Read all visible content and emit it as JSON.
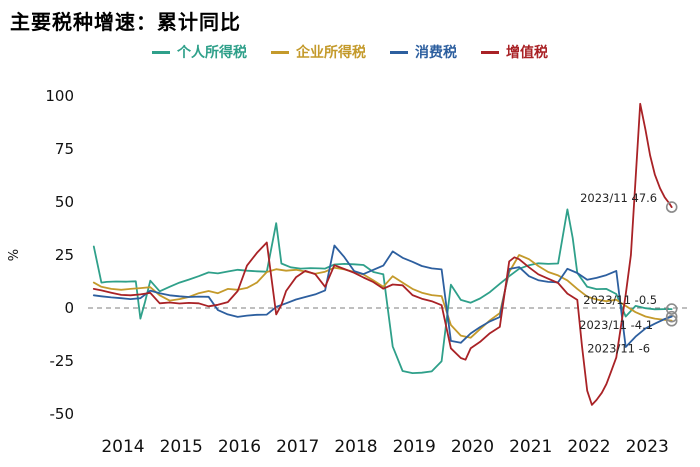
{
  "page": {
    "background": "#ffffff"
  },
  "chart_data": {
    "type": "line",
    "title": "主要税种增速：累计同比",
    "ylabel": "%",
    "xlim": [
      2013.85,
      2024.15
    ],
    "ylim": [
      -50,
      100
    ],
    "yticks": [
      100,
      75,
      50,
      25,
      0,
      -25,
      -50
    ],
    "xticks": [
      2014,
      2015,
      2016,
      2017,
      2018,
      2019,
      2020,
      2021,
      2022,
      2023
    ],
    "zero_line": {
      "dashed": true,
      "color": "#7f7f7f"
    },
    "legend_position": "top-center",
    "end_marker_color": "#8c8c8c",
    "series": [
      {
        "key": "personal-income-tax",
        "name": "个人所得税",
        "color": "#2fa08a",
        "points": [
          [
            2013.95,
            29
          ],
          [
            2014.08,
            12
          ],
          [
            2014.17,
            12.3
          ],
          [
            2014.33,
            12.5
          ],
          [
            2014.5,
            12.4
          ],
          [
            2014.67,
            12.6
          ],
          [
            2014.75,
            -5
          ],
          [
            2014.83,
            3
          ],
          [
            2014.92,
            12.9
          ],
          [
            2015.08,
            7.9
          ],
          [
            2015.25,
            10
          ],
          [
            2015.42,
            12
          ],
          [
            2015.58,
            13.4
          ],
          [
            2015.75,
            15
          ],
          [
            2015.92,
            16.8
          ],
          [
            2016.08,
            16.3
          ],
          [
            2016.25,
            17.2
          ],
          [
            2016.42,
            18
          ],
          [
            2016.58,
            17.6
          ],
          [
            2016.75,
            17.3
          ],
          [
            2016.92,
            17.1
          ],
          [
            2017.08,
            40
          ],
          [
            2017.17,
            21
          ],
          [
            2017.33,
            19.2
          ],
          [
            2017.5,
            18.6
          ],
          [
            2017.67,
            18.8
          ],
          [
            2017.83,
            18.7
          ],
          [
            2017.92,
            18.6
          ],
          [
            2018.08,
            20.5
          ],
          [
            2018.25,
            20.8
          ],
          [
            2018.42,
            20.6
          ],
          [
            2018.58,
            20.3
          ],
          [
            2018.75,
            17
          ],
          [
            2018.92,
            15.9
          ],
          [
            2019.08,
            -18.1
          ],
          [
            2019.25,
            -29.7
          ],
          [
            2019.42,
            -30.7
          ],
          [
            2019.58,
            -30.5
          ],
          [
            2019.75,
            -29.9
          ],
          [
            2019.92,
            -25.1
          ],
          [
            2020.08,
            11
          ],
          [
            2020.25,
            3.8
          ],
          [
            2020.42,
            2.5
          ],
          [
            2020.58,
            4.5
          ],
          [
            2020.75,
            7.5
          ],
          [
            2020.92,
            11.4
          ],
          [
            2021.08,
            15
          ],
          [
            2021.25,
            18.5
          ],
          [
            2021.42,
            20.2
          ],
          [
            2021.58,
            21.1
          ],
          [
            2021.75,
            20.8
          ],
          [
            2021.92,
            21
          ],
          [
            2022.08,
            46.5
          ],
          [
            2022.17,
            33
          ],
          [
            2022.25,
            16.5
          ],
          [
            2022.42,
            10
          ],
          [
            2022.58,
            8.9
          ],
          [
            2022.75,
            9
          ],
          [
            2022.92,
            6.6
          ],
          [
            2023.08,
            -4
          ],
          [
            2023.25,
            1
          ],
          [
            2023.42,
            -0.1
          ],
          [
            2023.58,
            -0.6
          ],
          [
            2023.75,
            -0.5
          ],
          [
            2023.87,
            -0.5
          ]
        ]
      },
      {
        "key": "corporate-income-tax",
        "name": "企业所得税",
        "color": "#c49a2b",
        "points": [
          [
            2013.95,
            12
          ],
          [
            2014.08,
            10
          ],
          [
            2014.25,
            9
          ],
          [
            2014.42,
            8.6
          ],
          [
            2014.58,
            9
          ],
          [
            2014.75,
            9.4
          ],
          [
            2014.92,
            9.8
          ],
          [
            2015.08,
            6
          ],
          [
            2015.25,
            3.5
          ],
          [
            2015.42,
            4.2
          ],
          [
            2015.58,
            5.2
          ],
          [
            2015.75,
            7
          ],
          [
            2015.92,
            8
          ],
          [
            2016.08,
            7
          ],
          [
            2016.25,
            9
          ],
          [
            2016.42,
            8.6
          ],
          [
            2016.58,
            9.5
          ],
          [
            2016.75,
            12
          ],
          [
            2016.92,
            17
          ],
          [
            2017.08,
            18.3
          ],
          [
            2017.25,
            17.6
          ],
          [
            2017.42,
            18
          ],
          [
            2017.58,
            17.2
          ],
          [
            2017.75,
            16.2
          ],
          [
            2017.92,
            17.1
          ],
          [
            2018.08,
            19
          ],
          [
            2018.25,
            18.2
          ],
          [
            2018.42,
            17
          ],
          [
            2018.58,
            15.8
          ],
          [
            2018.75,
            13
          ],
          [
            2018.92,
            10
          ],
          [
            2019.08,
            15
          ],
          [
            2019.25,
            12
          ],
          [
            2019.42,
            9
          ],
          [
            2019.58,
            7.2
          ],
          [
            2019.75,
            6.1
          ],
          [
            2019.92,
            5.6
          ],
          [
            2020.08,
            -8
          ],
          [
            2020.25,
            -13
          ],
          [
            2020.42,
            -14
          ],
          [
            2020.58,
            -10
          ],
          [
            2020.75,
            -5.8
          ],
          [
            2020.92,
            -2.4
          ],
          [
            2021.08,
            17
          ],
          [
            2021.25,
            25
          ],
          [
            2021.42,
            23
          ],
          [
            2021.58,
            19.8
          ],
          [
            2021.75,
            17
          ],
          [
            2021.92,
            15.4
          ],
          [
            2022.08,
            13
          ],
          [
            2022.25,
            9
          ],
          [
            2022.42,
            5.4
          ],
          [
            2022.58,
            4
          ],
          [
            2022.75,
            3.2
          ],
          [
            2022.92,
            3.9
          ],
          [
            2023.08,
            1
          ],
          [
            2023.25,
            -2
          ],
          [
            2023.42,
            -4
          ],
          [
            2023.58,
            -5
          ],
          [
            2023.75,
            -5.6
          ],
          [
            2023.87,
            -6
          ]
        ]
      },
      {
        "key": "consumption-tax",
        "name": "消费税",
        "color": "#2d5f9f",
        "points": [
          [
            2013.95,
            6
          ],
          [
            2014.08,
            5.5
          ],
          [
            2014.25,
            5
          ],
          [
            2014.42,
            4.6
          ],
          [
            2014.58,
            4.2
          ],
          [
            2014.75,
            4.6
          ],
          [
            2014.92,
            8.2
          ],
          [
            2015.08,
            7
          ],
          [
            2015.25,
            6
          ],
          [
            2015.42,
            5.5
          ],
          [
            2015.58,
            5.2
          ],
          [
            2015.75,
            5.4
          ],
          [
            2015.92,
            5.3
          ],
          [
            2016.08,
            -1
          ],
          [
            2016.25,
            -3
          ],
          [
            2016.42,
            -4.2
          ],
          [
            2016.58,
            -3.6
          ],
          [
            2016.75,
            -3.2
          ],
          [
            2016.92,
            -3.1
          ],
          [
            2017.08,
            0.5
          ],
          [
            2017.25,
            2.2
          ],
          [
            2017.42,
            4
          ],
          [
            2017.58,
            5.2
          ],
          [
            2017.75,
            6.4
          ],
          [
            2017.92,
            8.3
          ],
          [
            2018.08,
            29.5
          ],
          [
            2018.25,
            24
          ],
          [
            2018.42,
            17.4
          ],
          [
            2018.58,
            16
          ],
          [
            2018.75,
            18
          ],
          [
            2018.92,
            20
          ],
          [
            2019.08,
            26.7
          ],
          [
            2019.25,
            23.7
          ],
          [
            2019.42,
            21.8
          ],
          [
            2019.58,
            19.8
          ],
          [
            2019.75,
            18.7
          ],
          [
            2019.92,
            18.2
          ],
          [
            2020.08,
            -15.5
          ],
          [
            2020.25,
            -16.4
          ],
          [
            2020.42,
            -12
          ],
          [
            2020.58,
            -9
          ],
          [
            2020.75,
            -6.3
          ],
          [
            2020.92,
            -4.3
          ],
          [
            2021.08,
            18.4
          ],
          [
            2021.25,
            19.3
          ],
          [
            2021.42,
            15
          ],
          [
            2021.58,
            13.1
          ],
          [
            2021.75,
            12.3
          ],
          [
            2021.92,
            12.1
          ],
          [
            2022.08,
            18.5
          ],
          [
            2022.25,
            16.5
          ],
          [
            2022.42,
            13.3
          ],
          [
            2022.58,
            14.2
          ],
          [
            2022.75,
            15.5
          ],
          [
            2022.92,
            17.5
          ],
          [
            2023.08,
            -18.4
          ],
          [
            2023.25,
            -13.5
          ],
          [
            2023.42,
            -9.6
          ],
          [
            2023.58,
            -7.4
          ],
          [
            2023.75,
            -5.2
          ],
          [
            2023.87,
            -4.1
          ]
        ]
      },
      {
        "key": "vat",
        "name": "增值税",
        "color": "#a92226",
        "points": [
          [
            2013.95,
            9
          ],
          [
            2014.08,
            8.3
          ],
          [
            2014.25,
            7.2
          ],
          [
            2014.42,
            6.2
          ],
          [
            2014.58,
            6
          ],
          [
            2014.75,
            6.4
          ],
          [
            2014.92,
            7.1
          ],
          [
            2015.08,
            2.2
          ],
          [
            2015.25,
            2.6
          ],
          [
            2015.42,
            2.1
          ],
          [
            2015.58,
            2.4
          ],
          [
            2015.75,
            2.2
          ],
          [
            2015.92,
            0.8
          ],
          [
            2016.08,
            1.5
          ],
          [
            2016.25,
            2.8
          ],
          [
            2016.42,
            8
          ],
          [
            2016.58,
            20
          ],
          [
            2016.75,
            26
          ],
          [
            2016.92,
            30.9
          ],
          [
            2017.08,
            -3
          ],
          [
            2017.17,
            1.5
          ],
          [
            2017.25,
            8
          ],
          [
            2017.42,
            14.5
          ],
          [
            2017.58,
            17.5
          ],
          [
            2017.75,
            16
          ],
          [
            2017.92,
            10
          ],
          [
            2018.08,
            20.2
          ],
          [
            2018.25,
            18.4
          ],
          [
            2018.42,
            16.6
          ],
          [
            2018.58,
            14.4
          ],
          [
            2018.75,
            12.2
          ],
          [
            2018.92,
            9.1
          ],
          [
            2019.08,
            11.1
          ],
          [
            2019.25,
            10.7
          ],
          [
            2019.42,
            6.1
          ],
          [
            2019.58,
            4.4
          ],
          [
            2019.75,
            3.2
          ],
          [
            2019.92,
            1.3
          ],
          [
            2020.08,
            -19
          ],
          [
            2020.25,
            -23.6
          ],
          [
            2020.33,
            -24.4
          ],
          [
            2020.42,
            -19
          ],
          [
            2020.58,
            -16
          ],
          [
            2020.75,
            -11.9
          ],
          [
            2020.92,
            -8.9
          ],
          [
            2021.08,
            22
          ],
          [
            2021.17,
            23.9
          ],
          [
            2021.25,
            23
          ],
          [
            2021.42,
            19.2
          ],
          [
            2021.58,
            15.9
          ],
          [
            2021.75,
            13.8
          ],
          [
            2021.92,
            11.8
          ],
          [
            2022.08,
            6.8
          ],
          [
            2022.25,
            3.8
          ],
          [
            2022.33,
            -18
          ],
          [
            2022.42,
            -39
          ],
          [
            2022.5,
            -45.7
          ],
          [
            2022.58,
            -43.4
          ],
          [
            2022.67,
            -40
          ],
          [
            2022.75,
            -35.9
          ],
          [
            2022.83,
            -30
          ],
          [
            2022.92,
            -23.3
          ],
          [
            2023.08,
            6.3
          ],
          [
            2023.17,
            25
          ],
          [
            2023.25,
            61
          ],
          [
            2023.33,
            96.3
          ],
          [
            2023.42,
            84
          ],
          [
            2023.5,
            72
          ],
          [
            2023.58,
            63
          ],
          [
            2023.67,
            56.5
          ],
          [
            2023.75,
            52.2
          ],
          [
            2023.83,
            49.3
          ],
          [
            2023.87,
            47.6
          ]
        ]
      }
    ],
    "annotations": [
      {
        "text": "2023/11  47.6",
        "x": 2023.62,
        "y": 50
      },
      {
        "text": "2023/11  -0.5",
        "x": 2023.62,
        "y": 2
      },
      {
        "text": "2023/11  -4.1",
        "x": 2023.55,
        "y": -10
      },
      {
        "text": "2023/11  -6",
        "x": 2023.5,
        "y": -21
      }
    ]
  }
}
